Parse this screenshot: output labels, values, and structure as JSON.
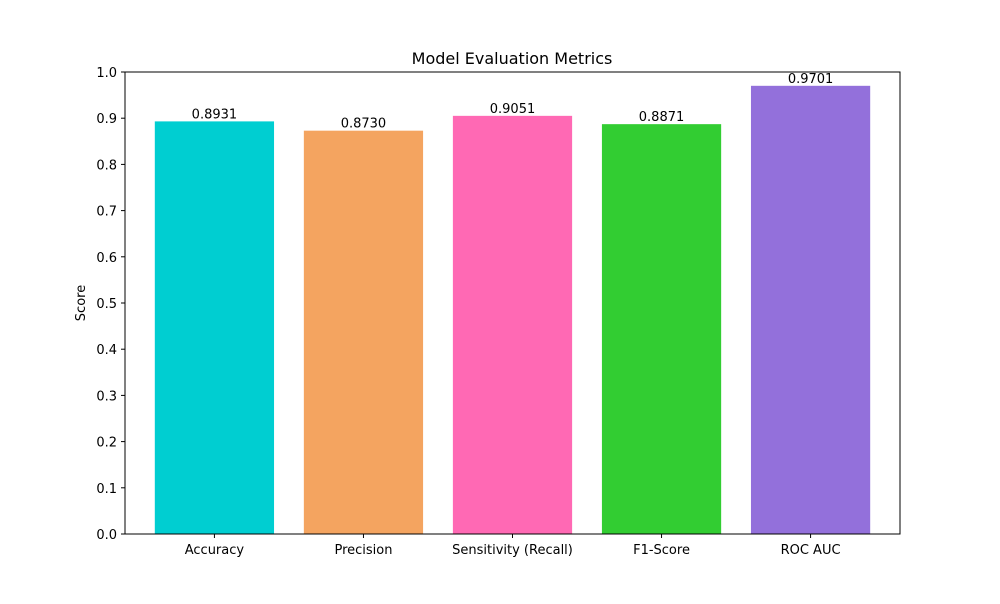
{
  "chart_data": {
    "type": "bar",
    "title": "Model Evaluation Metrics",
    "xlabel": "",
    "ylabel": "Score",
    "categories": [
      "Accuracy",
      "Precision",
      "Sensitivity (Recall)",
      "F1-Score",
      "ROC AUC"
    ],
    "values": [
      0.8931,
      0.873,
      0.9051,
      0.8871,
      0.9701
    ],
    "value_labels": [
      "0.8931",
      "0.8730",
      "0.9051",
      "0.8871",
      "0.9701"
    ],
    "colors": [
      "#00CED1",
      "#F4A460",
      "#FF69B4",
      "#32CD32",
      "#9370DB"
    ],
    "ylim": [
      0,
      1.0
    ],
    "yticks": [
      0.0,
      0.1,
      0.2,
      0.3,
      0.4,
      0.5,
      0.6,
      0.7,
      0.8,
      0.9,
      1.0
    ],
    "ytick_labels": [
      "0.0",
      "0.1",
      "0.2",
      "0.3",
      "0.4",
      "0.5",
      "0.6",
      "0.7",
      "0.8",
      "0.9",
      "1.0"
    ],
    "grid": false,
    "legend": "none"
  }
}
